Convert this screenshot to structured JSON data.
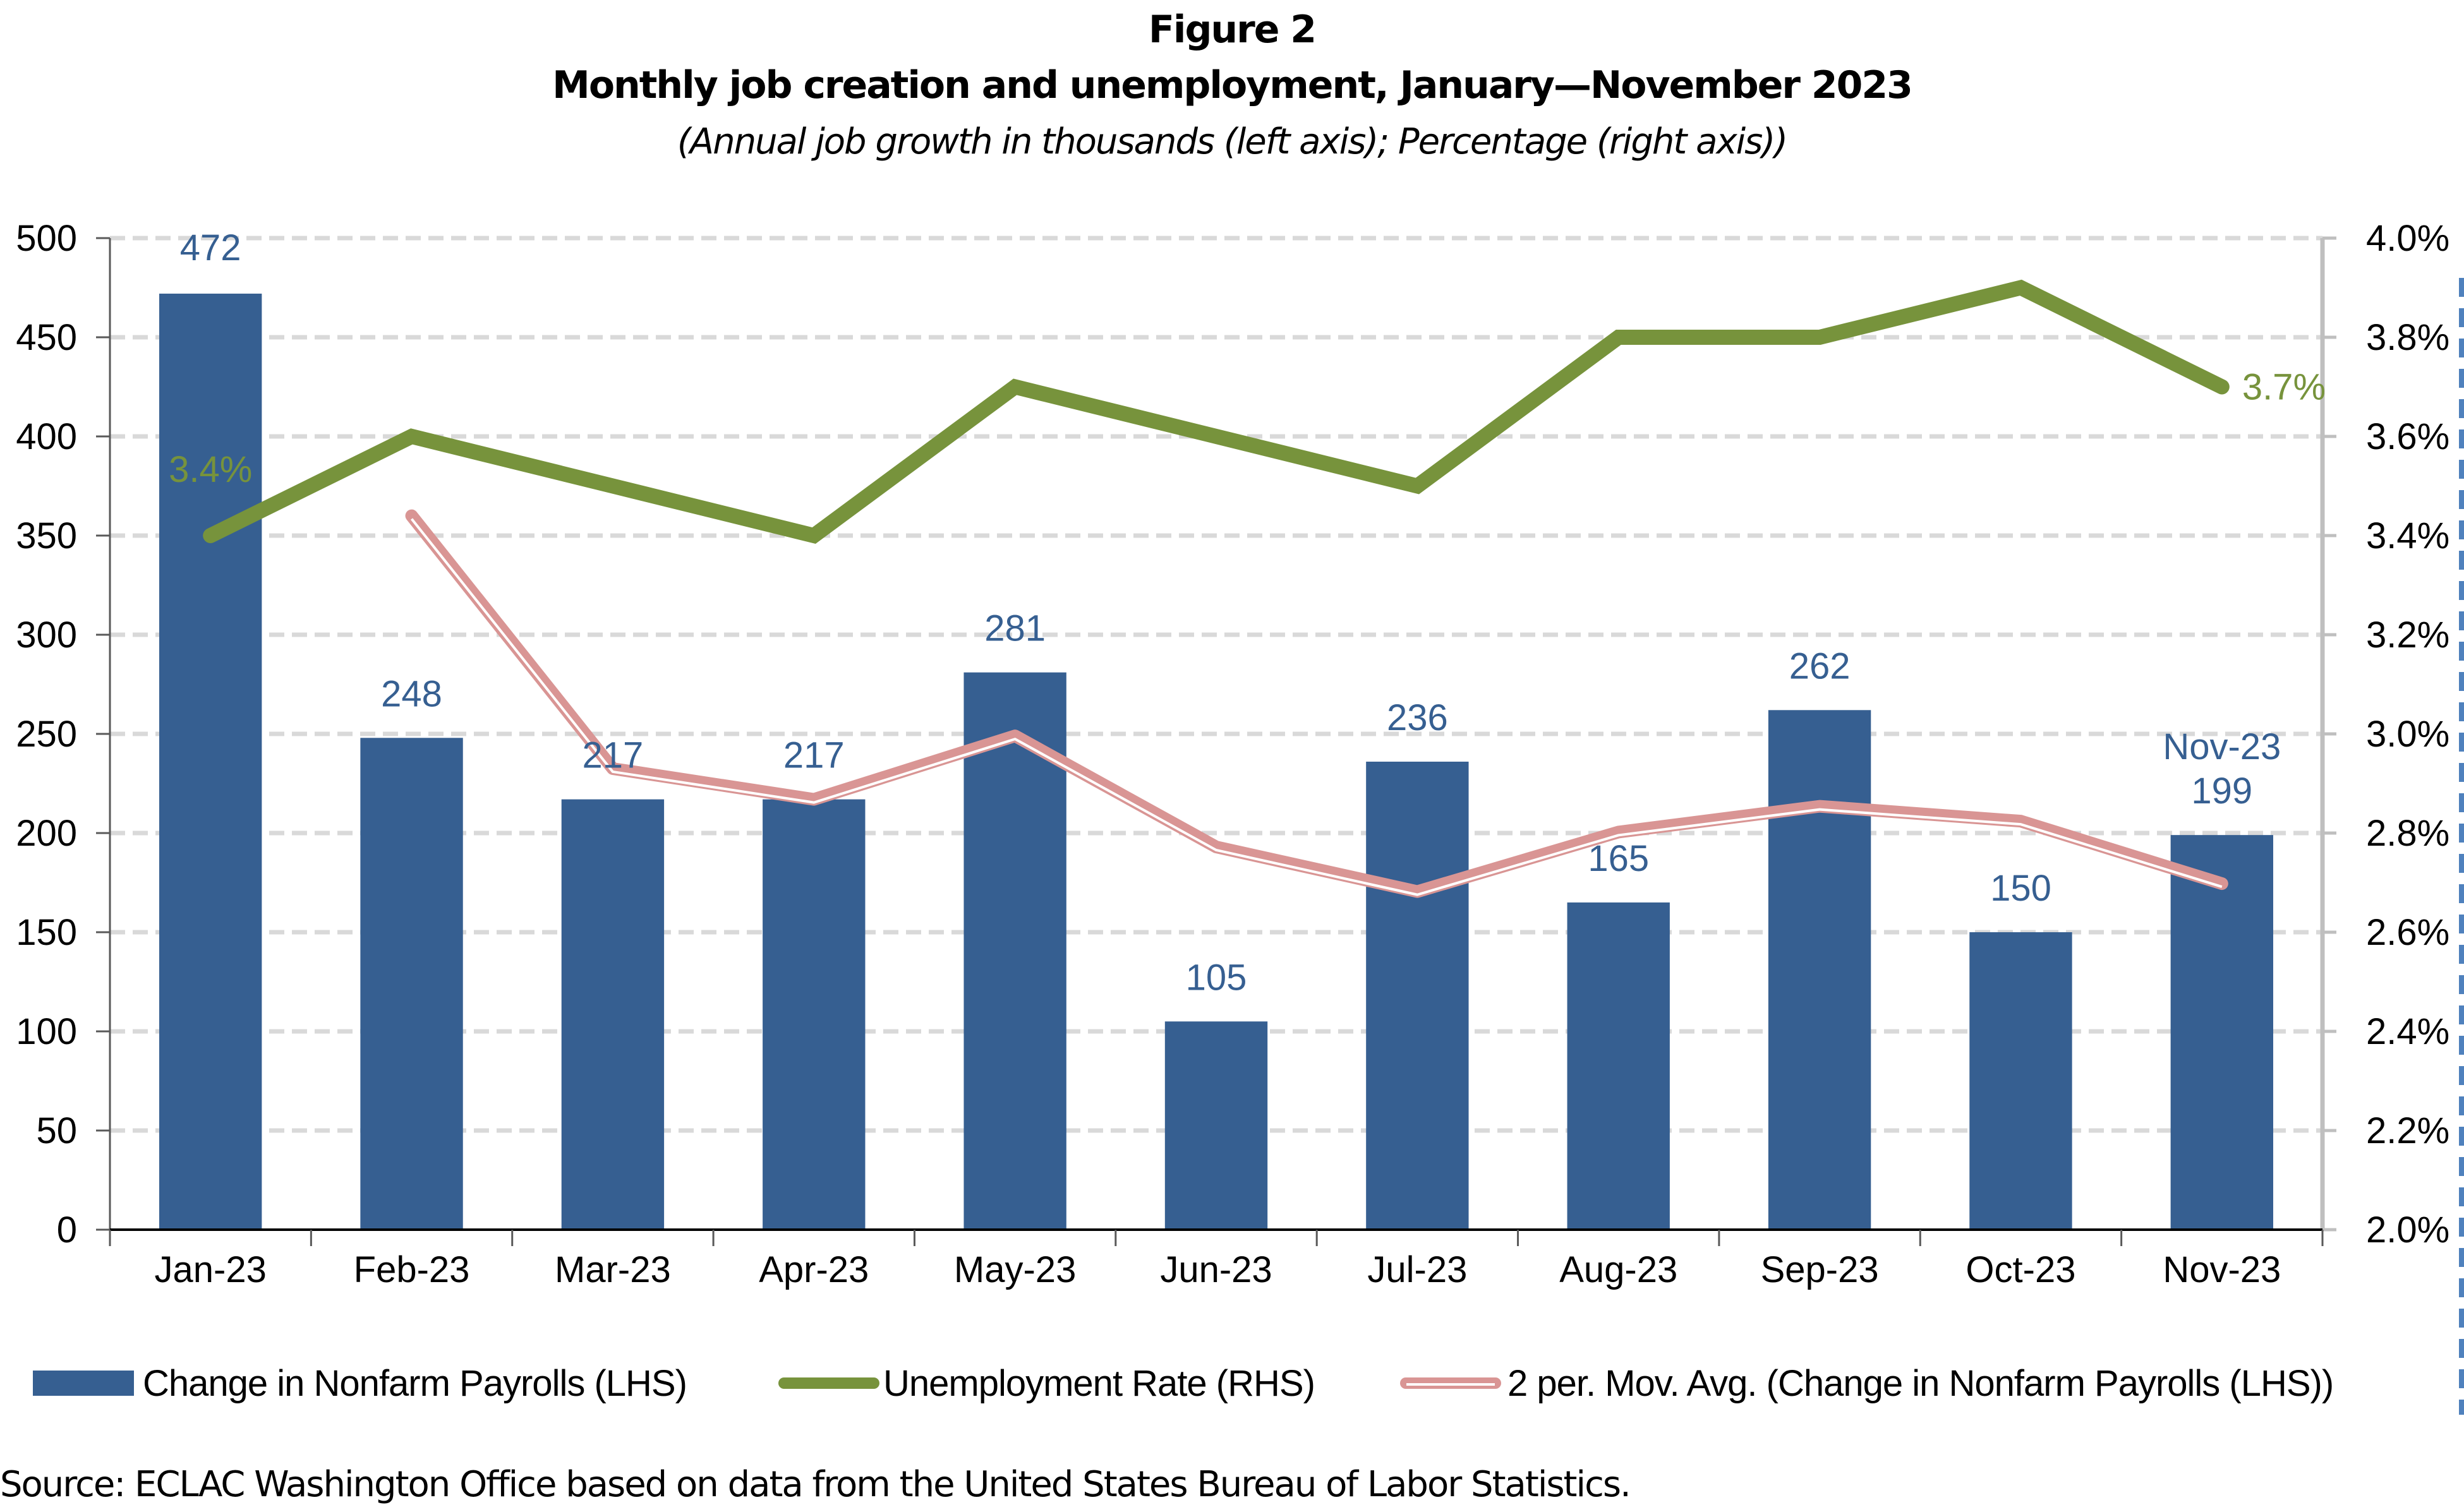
{
  "header": {
    "figure_label": "Figure 2",
    "title": "Monthly job creation and unemployment, January—November 2023",
    "subtitle": "(Annual job growth in thousands (left axis); Percentage (right axis))"
  },
  "colors": {
    "bars": "#365f91",
    "unemployment_line": "#77933c",
    "moving_average": "#d99594",
    "gridline": "#d9d9d9",
    "right_axis": "#bfbfbf"
  },
  "legend": {
    "items": [
      {
        "label": "Change in Nonfarm Payrolls (LHS)",
        "type": "bar"
      },
      {
        "label": "Unemployment Rate (RHS)",
        "type": "line"
      },
      {
        "label": "2 per. Mov. Avg. (Change in Nonfarm Payrolls (LHS))",
        "type": "moving-average"
      }
    ]
  },
  "footer": {
    "source": "Source: ECLAC Washington Office based on data from the United States Bureau of Labor Statistics."
  },
  "annotations": {
    "first_rate_label": "3.4%",
    "last_rate_label": "3.7%",
    "last_bar_category_label": "Nov-23"
  },
  "chart_data": {
    "type": "bar",
    "title": "Monthly job creation and unemployment, January—November 2023",
    "subtitle": "(Annual job growth in thousands (left axis); Percentage (right axis))",
    "categories": [
      "Jan-23",
      "Feb-23",
      "Mar-23",
      "Apr-23",
      "May-23",
      "Jun-23",
      "Jul-23",
      "Aug-23",
      "Sep-23",
      "Oct-23",
      "Nov-23"
    ],
    "series": [
      {
        "name": "Change in Nonfarm Payrolls (LHS)",
        "type": "bar",
        "axis": "left",
        "values": [
          472,
          248,
          217,
          217,
          281,
          105,
          236,
          165,
          262,
          150,
          199
        ]
      },
      {
        "name": "Unemployment Rate (RHS)",
        "type": "line",
        "axis": "right",
        "values": [
          3.4,
          3.6,
          3.5,
          3.4,
          3.7,
          3.6,
          3.5,
          3.8,
          3.8,
          3.9,
          3.7
        ]
      },
      {
        "name": "2 per. Mov. Avg. (Change in Nonfarm Payrolls (LHS))",
        "type": "line",
        "axis": "left",
        "values": [
          null,
          360,
          232.5,
          217,
          249,
          193,
          170.5,
          200.5,
          213.5,
          206,
          174.5
        ]
      }
    ],
    "left_axis": {
      "label": "Annual job growth in thousands",
      "ylim": [
        0,
        500
      ],
      "ticks": [
        "0",
        "50",
        "100",
        "150",
        "200",
        "250",
        "300",
        "350",
        "400",
        "450",
        "500"
      ]
    },
    "right_axis": {
      "label": "Percentage",
      "ylim": [
        2.0,
        4.0
      ],
      "ticks": [
        "2.0%",
        "2.2%",
        "2.4%",
        "2.6%",
        "2.8%",
        "3.0%",
        "3.2%",
        "3.4%",
        "3.6%",
        "3.8%",
        "4.0%"
      ]
    },
    "grid": "horizontal dashed",
    "legend_position": "bottom"
  }
}
